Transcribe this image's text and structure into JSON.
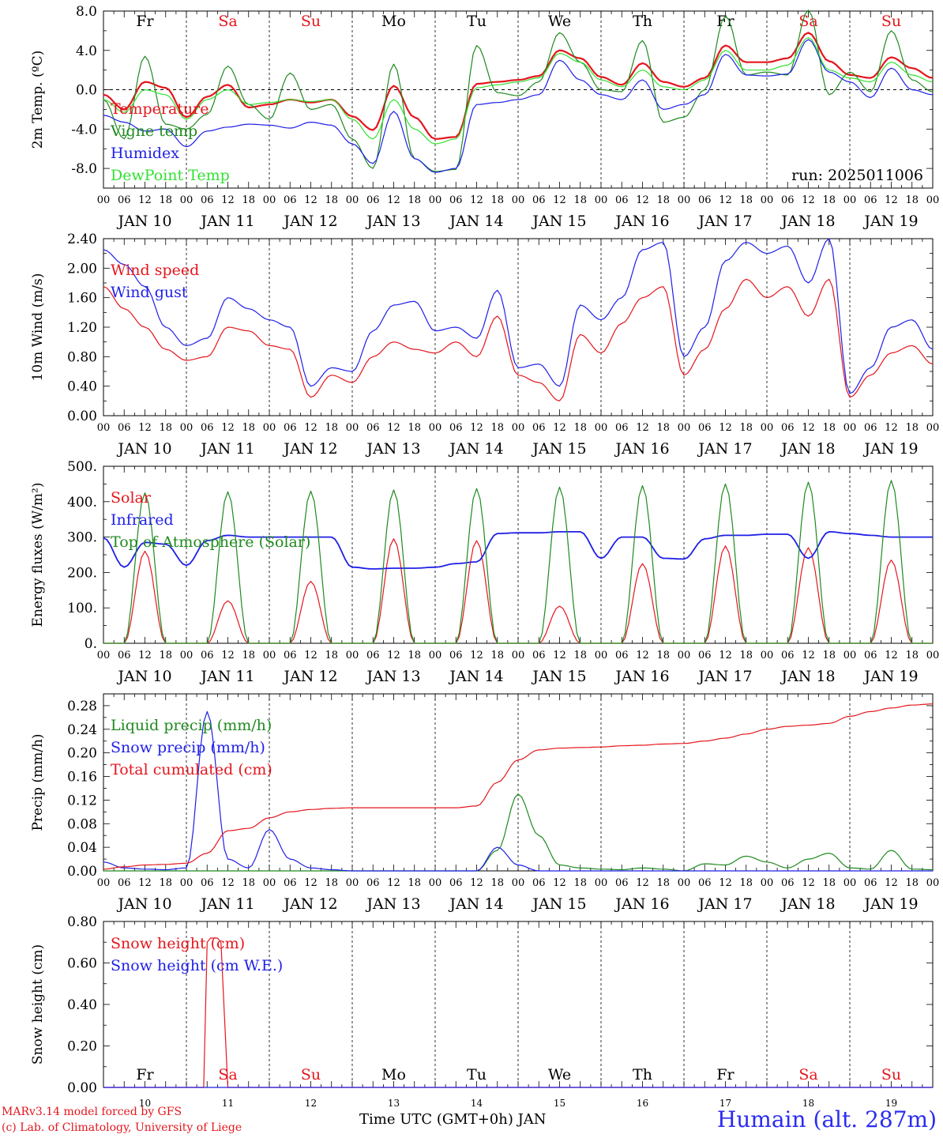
{
  "colors": {
    "red": "#e4161d",
    "green": "#1f8a1f",
    "blue": "#1f1fe8",
    "lime": "#33e033",
    "black": "#000000"
  },
  "days": {
    "dates": [
      "JAN 10",
      "JAN 11",
      "JAN 12",
      "JAN 13",
      "JAN 14",
      "JAN 15",
      "JAN 16",
      "JAN 17",
      "JAN 18",
      "JAN 19"
    ],
    "weekdays": [
      "Fr",
      "Sa",
      "Su",
      "Mo",
      "Tu",
      "We",
      "Th",
      "Fr",
      "Sa",
      "Su"
    ],
    "weekday_colors": [
      "black",
      "red",
      "red",
      "black",
      "black",
      "black",
      "black",
      "black",
      "red",
      "red"
    ],
    "day_numbers": [
      "10",
      "11",
      "12",
      "13",
      "14",
      "15",
      "16",
      "17",
      "18",
      "19"
    ],
    "hour_ticks": [
      "00",
      "06",
      "12",
      "18"
    ]
  },
  "footer": {
    "credit_line1": "MARv3.14 model forced by GFS",
    "credit_line2": "(c) Lab. of Climatology, University of Liege",
    "x_title": "Time UTC (GMT+0h) JAN",
    "station": "Humain (alt. 287m)"
  },
  "chart_data": [
    {
      "type": "line",
      "ylabel": "2m Temp. (ºC)",
      "ylim": [
        -10.0,
        8.0
      ],
      "yticks": [
        "8.0",
        "4.0",
        "0.0",
        "-4.0",
        "-8.0"
      ],
      "ytick_values": [
        8,
        4,
        0,
        -4,
        -8
      ],
      "zero_line": true,
      "annotation": "run: 2025011006",
      "x": [
        0,
        6,
        12,
        18,
        24,
        30,
        36,
        42,
        48,
        54,
        60,
        66,
        72,
        78,
        84,
        90,
        96,
        102,
        108,
        114,
        120,
        126,
        132,
        138,
        144,
        150,
        156,
        162,
        168,
        174,
        180,
        186,
        192,
        198,
        204,
        210,
        216,
        222,
        228,
        234,
        240
      ],
      "series": [
        {
          "name": "Temperature",
          "color": "red",
          "values": [
            -0.5,
            -2.0,
            0.8,
            0.2,
            -2.8,
            -0.7,
            0.5,
            -1.8,
            -1.5,
            -1.0,
            -1.3,
            -1.0,
            -2.7,
            -4.1,
            0.4,
            -2.8,
            -5.0,
            -4.8,
            0.6,
            0.8,
            1.0,
            1.4,
            4.0,
            3.2,
            1.3,
            0.5,
            2.7,
            0.8,
            0.3,
            1.2,
            4.5,
            2.8,
            2.8,
            3.2,
            5.8,
            2.9,
            1.5,
            1.2,
            3.3,
            2.2,
            1.2
          ]
        },
        {
          "name": "Vigne temp",
          "color": "green",
          "values": [
            -1.0,
            -5.0,
            3.4,
            -3.5,
            -4.0,
            -2.5,
            2.4,
            -1.5,
            -3.0,
            1.7,
            -2.0,
            -1.5,
            -5.0,
            -8.0,
            2.6,
            -7.0,
            -8.3,
            -8.1,
            4.5,
            -0.3,
            -0.6,
            0.8,
            5.8,
            2.8,
            0.0,
            -0.2,
            5.0,
            -3.3,
            -2.8,
            0.0,
            7.5,
            1.5,
            1.8,
            1.5,
            8.1,
            -0.5,
            1.8,
            -0.2,
            6.0,
            1.0,
            -0.2
          ]
        },
        {
          "name": "Humidex",
          "color": "blue",
          "values": [
            -2.6,
            -3.3,
            -4.2,
            -4.0,
            -5.8,
            -4.2,
            -3.8,
            -3.5,
            -3.6,
            -3.9,
            -3.3,
            -3.6,
            -5.5,
            -7.5,
            -2.2,
            -7.0,
            -8.4,
            -8.0,
            -1.5,
            -1.3,
            -1.0,
            -0.5,
            3.0,
            1.0,
            -0.5,
            -1.0,
            1.0,
            -2.0,
            -1.5,
            -0.5,
            3.6,
            1.5,
            1.4,
            1.6,
            5.1,
            1.8,
            0.8,
            -0.8,
            2.2,
            0.0,
            -0.5
          ]
        },
        {
          "name": "DewPoint Temp",
          "color": "lime",
          "values": [
            -1.0,
            -2.3,
            0.0,
            -0.5,
            -3.0,
            -1.0,
            0.0,
            -1.5,
            -1.3,
            -1.0,
            -1.2,
            -1.0,
            -3.0,
            -5.0,
            -1.0,
            -4.0,
            -5.5,
            -5.0,
            0.2,
            0.5,
            0.8,
            1.2,
            3.7,
            2.8,
            1.0,
            0.3,
            2.0,
            0.3,
            0.0,
            1.0,
            4.0,
            2.0,
            2.0,
            2.5,
            5.3,
            2.0,
            1.2,
            0.8,
            2.8,
            1.5,
            0.8
          ]
        }
      ]
    },
    {
      "type": "line",
      "ylabel": "10m Wind (m/s)",
      "ylim": [
        0.0,
        2.4
      ],
      "yticks": [
        "2.40",
        "2.00",
        "1.60",
        "1.20",
        "0.80",
        "0.40",
        "0.00"
      ],
      "ytick_values": [
        2.4,
        2.0,
        1.6,
        1.2,
        0.8,
        0.4,
        0.0
      ],
      "x": [
        0,
        6,
        12,
        18,
        24,
        30,
        36,
        42,
        48,
        54,
        60,
        66,
        72,
        78,
        84,
        90,
        96,
        102,
        108,
        114,
        120,
        126,
        132,
        138,
        144,
        150,
        156,
        162,
        168,
        174,
        180,
        186,
        192,
        198,
        204,
        210,
        216,
        222,
        228,
        234,
        240
      ],
      "series": [
        {
          "name": "Wind speed",
          "color": "red",
          "values": [
            1.75,
            1.45,
            1.2,
            0.9,
            0.75,
            0.8,
            1.2,
            1.15,
            0.95,
            0.9,
            0.25,
            0.55,
            0.45,
            0.8,
            1.0,
            0.9,
            0.85,
            1.0,
            0.8,
            1.35,
            0.55,
            0.45,
            0.2,
            1.1,
            0.85,
            1.25,
            1.6,
            1.75,
            0.55,
            0.9,
            1.45,
            1.85,
            1.6,
            1.75,
            1.35,
            1.85,
            0.25,
            0.55,
            0.85,
            0.95,
            0.7
          ]
        },
        {
          "name": "Wind gust",
          "color": "blue",
          "values": [
            2.25,
            2.05,
            1.75,
            1.2,
            0.95,
            1.05,
            1.6,
            1.45,
            1.3,
            1.2,
            0.4,
            0.65,
            0.6,
            1.15,
            1.5,
            1.55,
            1.15,
            1.2,
            1.05,
            1.7,
            0.65,
            0.7,
            0.4,
            1.5,
            1.3,
            1.6,
            2.25,
            2.35,
            0.8,
            1.2,
            2.1,
            2.35,
            2.2,
            2.3,
            1.8,
            2.4,
            0.3,
            0.65,
            1.2,
            1.3,
            0.9
          ]
        }
      ]
    },
    {
      "type": "line",
      "ylabel": "Energy fluxes (W/m²)",
      "ylim": [
        0,
        500
      ],
      "yticks": [
        "500.",
        "400.",
        "300.",
        "200.",
        "100.",
        "0."
      ],
      "ytick_values": [
        500,
        400,
        300,
        200,
        100,
        0
      ],
      "x": [
        0,
        6,
        12,
        18,
        24,
        30,
        36,
        42,
        48,
        54,
        60,
        66,
        72,
        78,
        84,
        90,
        96,
        102,
        108,
        114,
        120,
        126,
        132,
        138,
        144,
        150,
        156,
        162,
        168,
        174,
        180,
        186,
        192,
        198,
        204,
        210,
        216,
        222,
        228,
        234,
        240
      ],
      "series": [
        {
          "name": "Solar",
          "color": "red",
          "values": [
            0,
            0,
            260,
            0,
            0,
            0,
            120,
            0,
            0,
            0,
            175,
            0,
            0,
            0,
            295,
            0,
            0,
            0,
            290,
            0,
            0,
            0,
            105,
            0,
            0,
            0,
            225,
            0,
            0,
            0,
            275,
            0,
            0,
            0,
            270,
            0,
            0,
            0,
            235,
            0,
            0
          ]
        },
        {
          "name": "Infrared",
          "color": "blue",
          "values": [
            298,
            215,
            285,
            280,
            220,
            290,
            305,
            300,
            300,
            300,
            300,
            300,
            215,
            210,
            212,
            212,
            215,
            225,
            230,
            310,
            312,
            312,
            315,
            315,
            240,
            300,
            300,
            240,
            238,
            295,
            305,
            305,
            308,
            308,
            240,
            315,
            310,
            305,
            300,
            300,
            300
          ]
        },
        {
          "name": "Top of Atmosphere (Solar)",
          "color": "green",
          "values": [
            0,
            0,
            425,
            0,
            0,
            0,
            428,
            0,
            0,
            0,
            430,
            0,
            0,
            0,
            433,
            0,
            0,
            0,
            437,
            0,
            0,
            0,
            441,
            0,
            0,
            0,
            445,
            0,
            0,
            0,
            450,
            0,
            0,
            0,
            455,
            0,
            0,
            0,
            460,
            0,
            0
          ]
        }
      ]
    },
    {
      "type": "line",
      "ylabel": "Precip (mm/h)",
      "ylim": [
        0.0,
        0.3
      ],
      "yticks": [
        "0.28",
        "0.24",
        "0.20",
        "0.16",
        "0.12",
        "0.08",
        "0.04",
        "0.00"
      ],
      "ytick_values": [
        0.28,
        0.24,
        0.2,
        0.16,
        0.12,
        0.08,
        0.04,
        0.0
      ],
      "x": [
        0,
        6,
        12,
        18,
        24,
        30,
        36,
        42,
        48,
        54,
        60,
        66,
        72,
        78,
        84,
        90,
        96,
        102,
        108,
        114,
        120,
        126,
        132,
        138,
        144,
        150,
        156,
        162,
        168,
        174,
        180,
        186,
        192,
        198,
        204,
        210,
        216,
        222,
        228,
        234,
        240
      ],
      "series": [
        {
          "name": "Liquid precip (mm/h)",
          "color": "green",
          "values": [
            0,
            0,
            0,
            0,
            0,
            0,
            0,
            0,
            0,
            0,
            0,
            0,
            0,
            0,
            0,
            0,
            0,
            0,
            0,
            0.035,
            0.13,
            0.06,
            0.01,
            0.005,
            0.003,
            0.002,
            0.005,
            0.003,
            0,
            0.012,
            0.01,
            0.025,
            0.015,
            0.005,
            0.02,
            0.03,
            0.005,
            0.003,
            0.035,
            0.003,
            0.002
          ]
        },
        {
          "name": "Snow precip (mm/h)",
          "color": "blue",
          "values": [
            0.015,
            0.005,
            0.003,
            0.002,
            0.005,
            0.27,
            0.02,
            0.005,
            0.07,
            0.02,
            0.005,
            0.002,
            0,
            0,
            0,
            0,
            0,
            0,
            0,
            0.04,
            0.01,
            0,
            0,
            0,
            0,
            0,
            0,
            0,
            0,
            0,
            0,
            0,
            0,
            0,
            0,
            0,
            0,
            0,
            0,
            0,
            0
          ]
        },
        {
          "name": "Total cumulated (cm)",
          "color": "red",
          "values": [
            0.003,
            0.007,
            0.01,
            0.011,
            0.013,
            0.03,
            0.068,
            0.072,
            0.09,
            0.1,
            0.104,
            0.106,
            0.107,
            0.107,
            0.107,
            0.107,
            0.107,
            0.107,
            0.11,
            0.15,
            0.188,
            0.205,
            0.208,
            0.209,
            0.21,
            0.212,
            0.213,
            0.215,
            0.216,
            0.22,
            0.225,
            0.232,
            0.24,
            0.245,
            0.247,
            0.25,
            0.262,
            0.27,
            0.276,
            0.281,
            0.283
          ]
        }
      ]
    },
    {
      "type": "line",
      "ylabel": "Snow height (cm)",
      "ylim": [
        0.0,
        0.8
      ],
      "yticks": [
        "0.80",
        "0.60",
        "0.40",
        "0.20",
        "0.00"
      ],
      "ytick_values": [
        0.8,
        0.6,
        0.4,
        0.2,
        0.0
      ],
      "x": [
        0,
        6,
        12,
        18,
        24,
        28,
        29,
        30,
        31,
        32,
        33,
        34,
        36,
        38,
        42,
        48,
        72,
        96,
        120,
        144,
        168,
        192,
        216,
        240
      ],
      "series": [
        {
          "name": "Snow height (cm)",
          "color": "red",
          "values": [
            0,
            0,
            0,
            0,
            0,
            0,
            0,
            0.7,
            0.72,
            0.72,
            0.72,
            0.7,
            0,
            0,
            0,
            0,
            0,
            0,
            0,
            0,
            0,
            0,
            0,
            0
          ]
        },
        {
          "name": "Snow height (cm W.E.)",
          "color": "blue",
          "values": [
            0,
            0,
            0,
            0,
            0,
            0,
            0,
            0,
            0,
            0,
            0,
            0,
            0,
            0,
            0,
            0,
            0,
            0,
            0,
            0,
            0,
            0,
            0,
            0
          ]
        }
      ]
    }
  ]
}
